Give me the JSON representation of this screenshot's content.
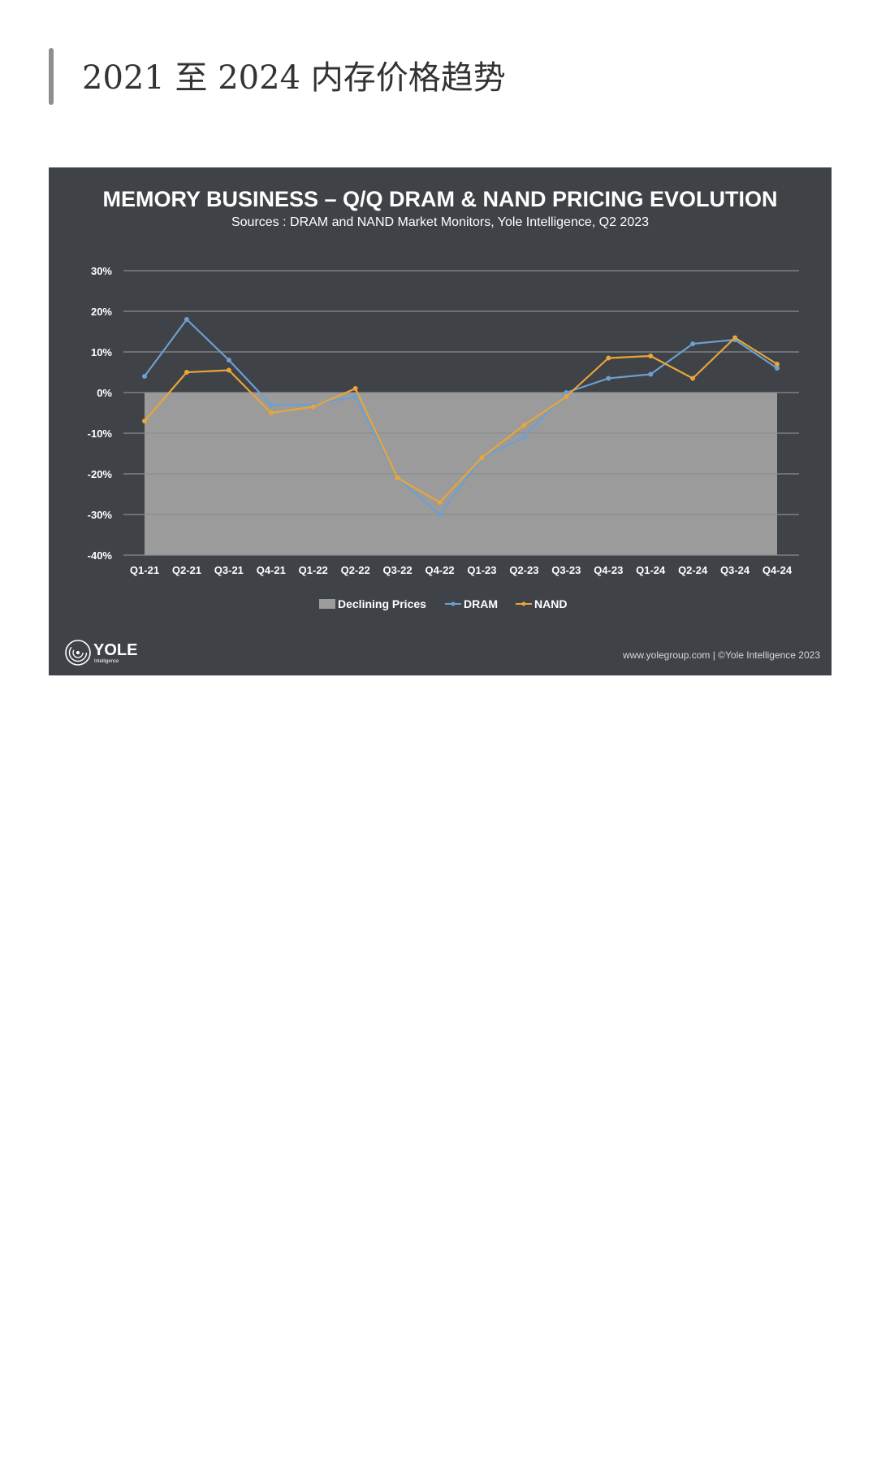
{
  "page": {
    "heading": "2021 至 2024 内存价格趋势"
  },
  "colors": {
    "panel": "#3f4247",
    "declining_fill": "#9b9b9b",
    "dram": "#6e9fd0",
    "nand": "#e8a53a",
    "grid": "#8a8c90"
  },
  "logo": {
    "name": "YOLE",
    "tagline": "Intelligence",
    "icon": "yole-swirl-logo-icon"
  },
  "credit": "www.yolegroup.com | ©Yole Intelligence 2023",
  "chart_data": {
    "type": "line",
    "title": "MEMORY BUSINESS – Q/Q DRAM & NAND PRICING EVOLUTION",
    "subtitle": "Sources : DRAM and NAND Market Monitors, Yole Intelligence, Q2 2023",
    "categories": [
      "Q1-21",
      "Q2-21",
      "Q3-21",
      "Q4-21",
      "Q1-22",
      "Q2-22",
      "Q3-22",
      "Q4-22",
      "Q1-23",
      "Q2-23",
      "Q3-23",
      "Q4-23",
      "Q1-24",
      "Q2-24",
      "Q3-24",
      "Q4-24"
    ],
    "ylim": [
      -40,
      30
    ],
    "yticks": [
      30,
      20,
      10,
      0,
      -10,
      -20,
      -30,
      -40
    ],
    "ytick_labels": [
      "30%",
      "20%",
      "10%",
      "0%",
      "-10%",
      "-20%",
      "-30%",
      "-40%"
    ],
    "grid": true,
    "legend_position": "bottom",
    "declining_region": {
      "name": "Declining Prices",
      "from": 0,
      "to": -40
    },
    "series": [
      {
        "name": "DRAM",
        "color": "#6e9fd0",
        "values": [
          4,
          18,
          8,
          -3,
          -3,
          -1,
          -21,
          -30,
          -16,
          -11,
          0,
          3.5,
          4.5,
          12,
          13,
          6
        ]
      },
      {
        "name": "NAND",
        "color": "#e8a53a",
        "values": [
          -7,
          5,
          5.5,
          -5,
          -3.5,
          1,
          -21,
          -27,
          -16,
          -8,
          -1,
          8.5,
          9,
          3.5,
          13.5,
          7
        ]
      }
    ]
  }
}
